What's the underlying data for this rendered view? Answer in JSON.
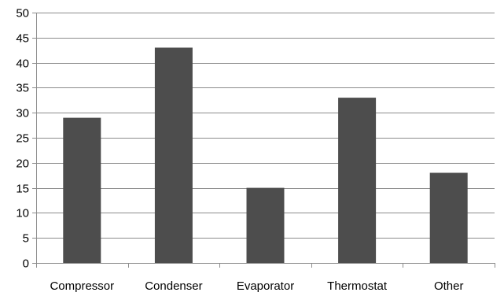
{
  "chart_data": {
    "type": "bar",
    "title": "",
    "xlabel": "",
    "ylabel": "",
    "categories": [
      "Compressor",
      "Condenser",
      "Evaporator",
      "Thermostat",
      "Other"
    ],
    "values": [
      29,
      43,
      15,
      33,
      18
    ],
    "ylim": [
      0,
      50
    ],
    "yticks": [
      "0",
      "5",
      "10",
      "15",
      "20",
      "25",
      "30",
      "35",
      "40",
      "45",
      "50"
    ],
    "grid": true,
    "legend": "none",
    "bar_color": "#4d4d4d",
    "grid_color": "#8c8c8c"
  }
}
